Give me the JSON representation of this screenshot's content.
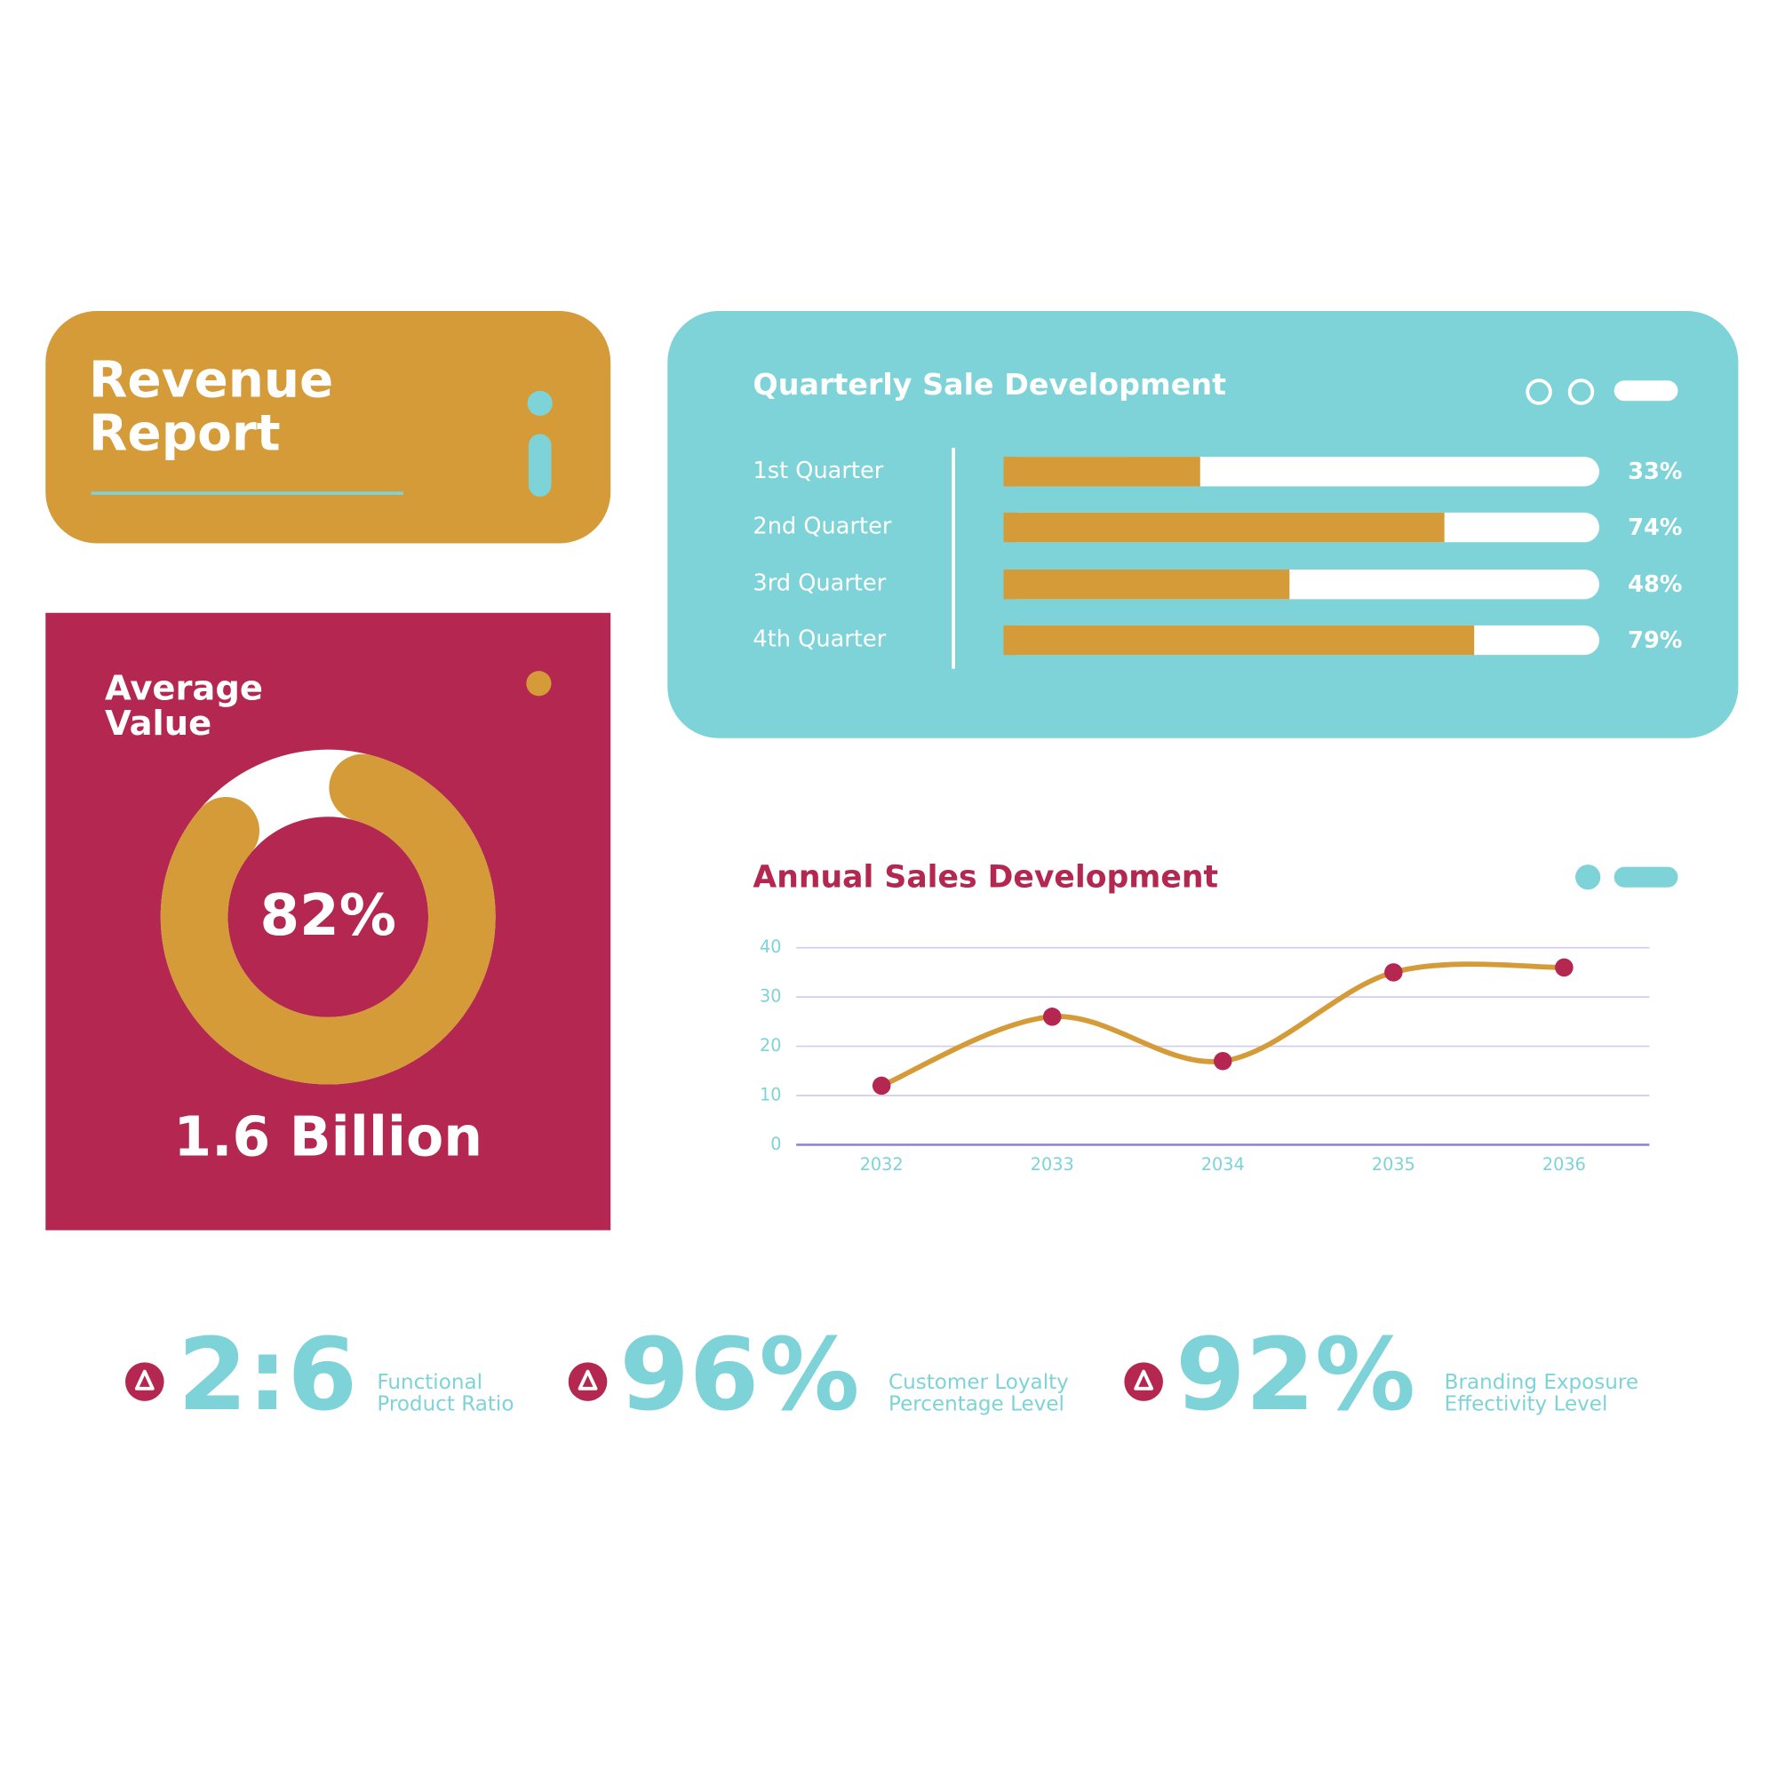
{
  "header": {
    "title": [
      "Revenue",
      "Report"
    ]
  },
  "chart_data": [
    {
      "type": "bar",
      "title": "Quarterly Sale Development",
      "categories": [
        "1st Quarter",
        "2nd Quarter",
        "3rd Quarter",
        "4th Quarter"
      ],
      "values": [
        33,
        74,
        48,
        79
      ],
      "value_labels": [
        "33%",
        "74%",
        "48%",
        "79%"
      ],
      "xlim": [
        0,
        100
      ],
      "color": "#d49b38"
    },
    {
      "type": "pie",
      "title": [
        "Average",
        "Value"
      ],
      "subtitle": "1.6 Billion",
      "values": [
        82
      ],
      "value_labels": [
        "82%"
      ],
      "color": "#d49b38"
    },
    {
      "type": "line",
      "title": "Annual Sales Development",
      "categories": [
        "2032",
        "2033",
        "2034",
        "2035",
        "2036"
      ],
      "values": [
        12,
        26,
        17,
        35,
        36
      ],
      "ylim": [
        0,
        40
      ],
      "yticks": [
        0,
        10,
        20,
        30,
        40
      ],
      "grid": true,
      "color": "#d49b38",
      "marker_color": "#b32750"
    }
  ],
  "stats": [
    {
      "value": "2:6",
      "label": [
        "Functional",
        "Product Ratio"
      ]
    },
    {
      "value": "96%",
      "label": [
        "Customer Loyalty",
        "Percentage Level"
      ]
    },
    {
      "value": "92%",
      "label": [
        "Branding Exposure",
        "Effectivity Level"
      ]
    }
  ]
}
